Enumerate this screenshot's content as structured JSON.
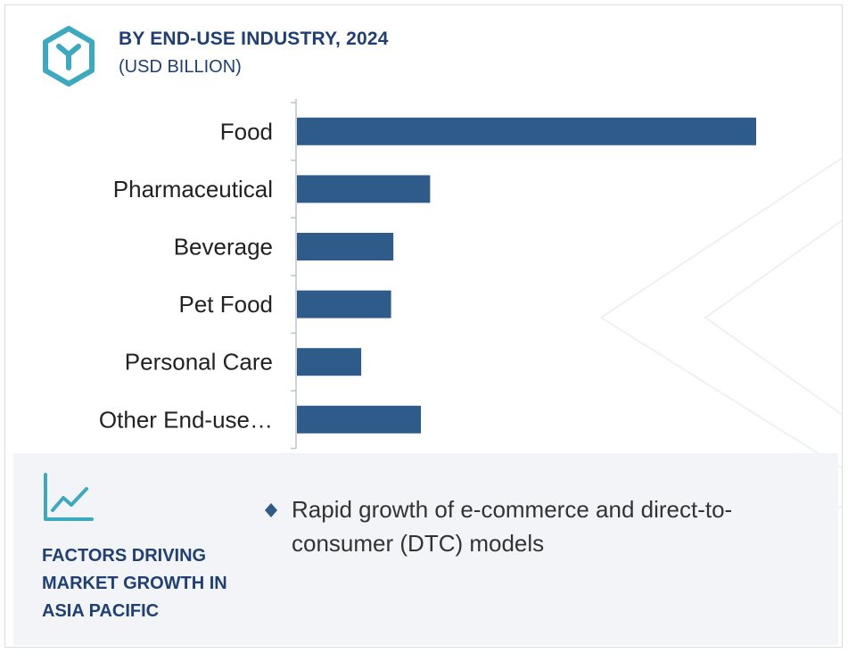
{
  "header": {
    "icon": "cube-y-logo-icon",
    "title": "BY END-USE INDUSTRY, 2024",
    "subtitle": "(USD BILLION)"
  },
  "chart_data": {
    "type": "bar",
    "orientation": "horizontal",
    "title": "BY END-USE INDUSTRY, 2024",
    "subtitle": "(USD BILLION)",
    "categories": [
      "Food",
      "Pharmaceutical",
      "Beverage",
      "Pet Food",
      "Personal Care",
      "Other End-use…"
    ],
    "values": [
      100,
      29,
      21,
      20.5,
      14,
      27
    ],
    "xlim": [
      0,
      100
    ],
    "bar_color": "#2e5b8a",
    "grid": false,
    "legend": "none",
    "xlabel": "",
    "ylabel": ""
  },
  "factors": {
    "icon": "line-chart-icon",
    "title": "FACTORS DRIVING MARKET GROWTH IN ASIA PACIFIC",
    "bullet_icon": "diamond-bullet-icon",
    "items": [
      "Rapid growth of e-commerce and direct-to-consumer (DTC) models"
    ]
  },
  "colors": {
    "heading": "#1f3f75",
    "accent": "#3da9c1",
    "bar": "#2e5b8a",
    "panel_bg": "#f3f4f8"
  }
}
